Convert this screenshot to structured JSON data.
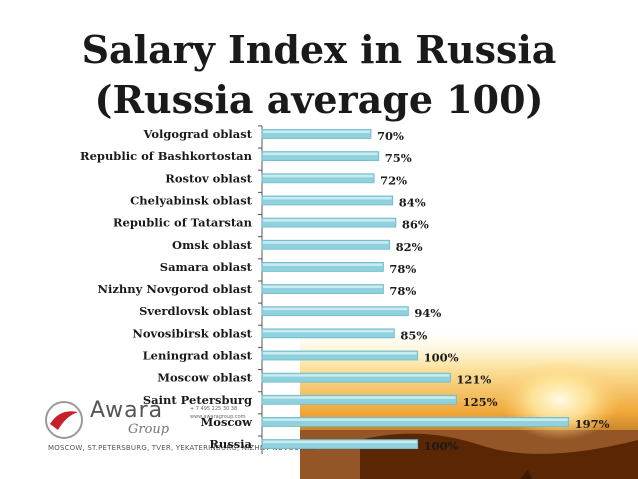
{
  "title_line1": "Salary Index in Russia",
  "title_line2": "(Russia average 100)",
  "logo": {
    "brand": "Awara",
    "sub": "Group",
    "phone": "+ 7 495 225 30 38",
    "site": "www.awaragroup.com",
    "cities": "MOSCOW, ST.PETERSBURG, TVER, YEKATERINBURG, NIZHNY NOVGOROD"
  },
  "colors": {
    "bar": "#8fd1dc",
    "bar_edge": "#6fb9c6",
    "bar_highlight": "#d8f1f5",
    "axis": "#555555",
    "sunset_dark": "#7a3a08",
    "sunset_orange": "#f0a020"
  },
  "chart_data": {
    "type": "bar",
    "orientation": "horizontal",
    "title": "Salary Index in Russia (Russia average 100)",
    "categories": [
      "Volgograd oblast",
      "Republic of Bashkortostan",
      "Rostov oblast",
      "Chelyabinsk oblast",
      "Republic of Tatarstan",
      "Omsk oblast",
      "Samara oblast",
      "Nizhny Novgorod oblast",
      "Sverdlovsk oblast",
      "Novosibirsk oblast",
      "Leningrad oblast",
      "Moscow oblast",
      "Saint Petersburg",
      "Moscow",
      "Russia"
    ],
    "values": [
      70,
      75,
      72,
      84,
      86,
      82,
      78,
      78,
      94,
      85,
      100,
      121,
      125,
      197,
      100
    ],
    "value_labels": [
      "70%",
      "75%",
      "72%",
      "84%",
      "86%",
      "82%",
      "78%",
      "78%",
      "94%",
      "85%",
      "100%",
      "121%",
      "125%",
      "197%",
      "100%"
    ],
    "xlim": [
      0,
      200
    ],
    "grid": false,
    "legend": "none"
  }
}
